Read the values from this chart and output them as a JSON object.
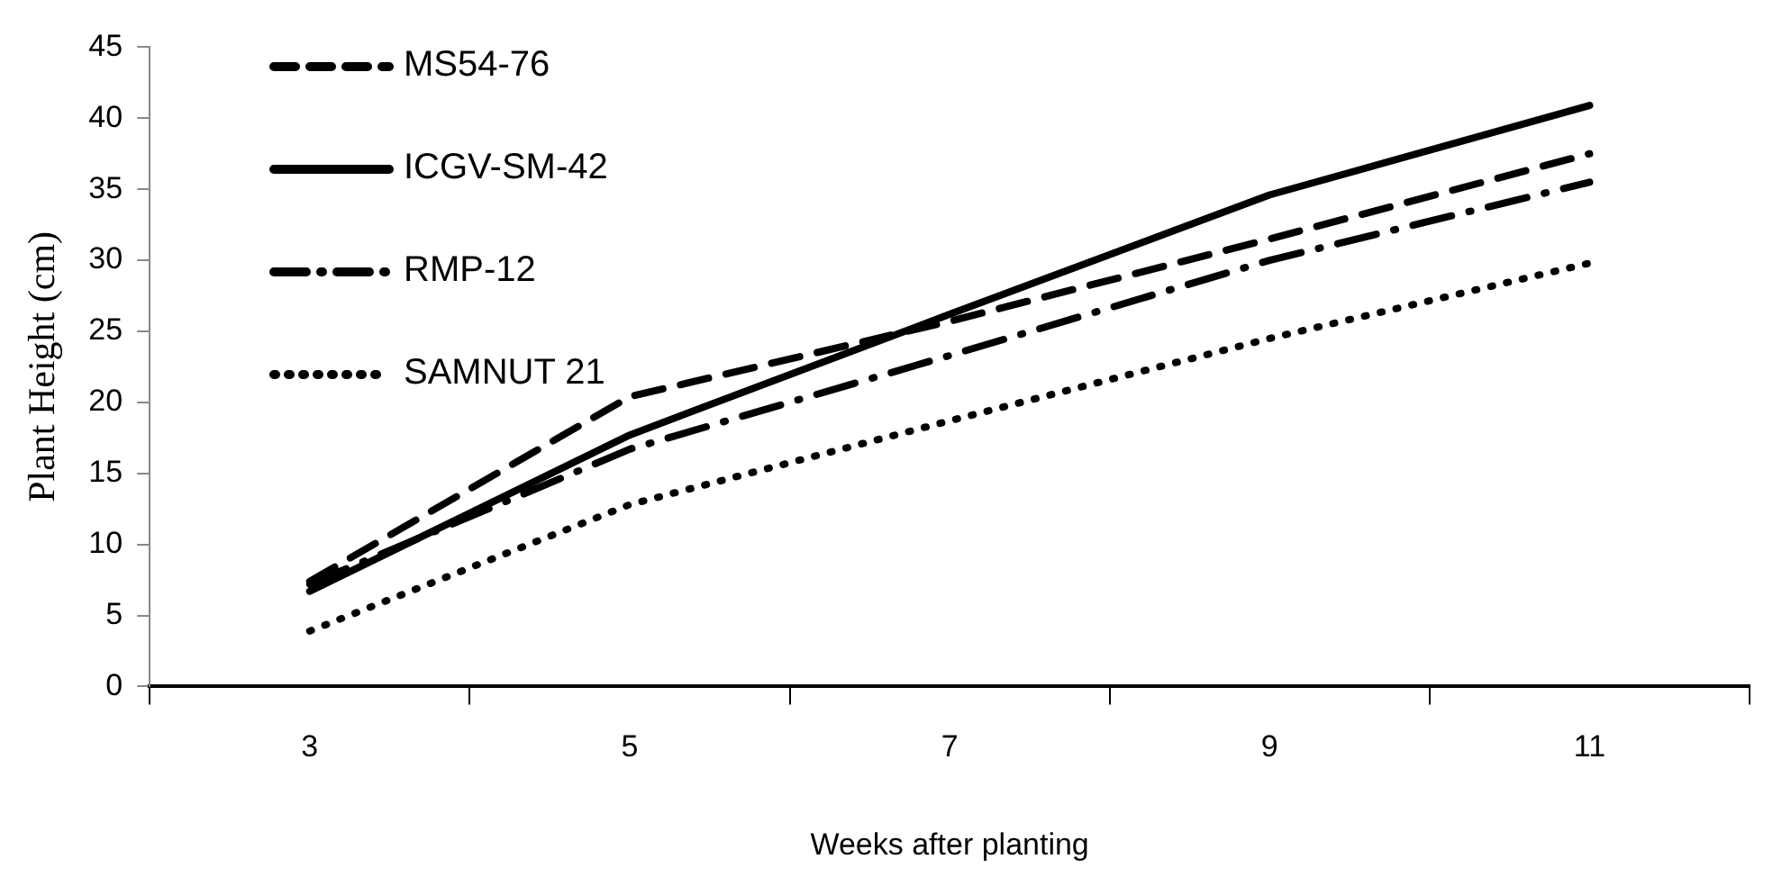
{
  "chart_data": {
    "type": "line",
    "xlabel": "Weeks after planting",
    "ylabel": "Plant Height (cm)",
    "categories": [
      "3",
      "5",
      "7",
      "9",
      "11"
    ],
    "ylim": [
      0,
      45
    ],
    "yticks": [
      0,
      5,
      10,
      15,
      20,
      25,
      30,
      35,
      40,
      45
    ],
    "grid": false,
    "legend": "top left",
    "series": [
      {
        "name": "MS54-76",
        "color": "#000000",
        "line_style": "dashed",
        "values": [
          7.4,
          20.4,
          25.7,
          31.5,
          37.5
        ]
      },
      {
        "name": "ICGV-SM-42",
        "color": "#000000",
        "line_style": "solid",
        "values": [
          6.7,
          17.7,
          26.2,
          34.6,
          40.9
        ]
      },
      {
        "name": "RMP-12",
        "color": "#000000",
        "line_style": "dashdot",
        "values": [
          7.2,
          16.7,
          23.3,
          30,
          35.5
        ]
      },
      {
        "name": "SAMNUT 21",
        "color": "#000000",
        "line_style": "dotted",
        "values": [
          3.9,
          12.8,
          18.7,
          24.5,
          29.8
        ]
      }
    ]
  }
}
